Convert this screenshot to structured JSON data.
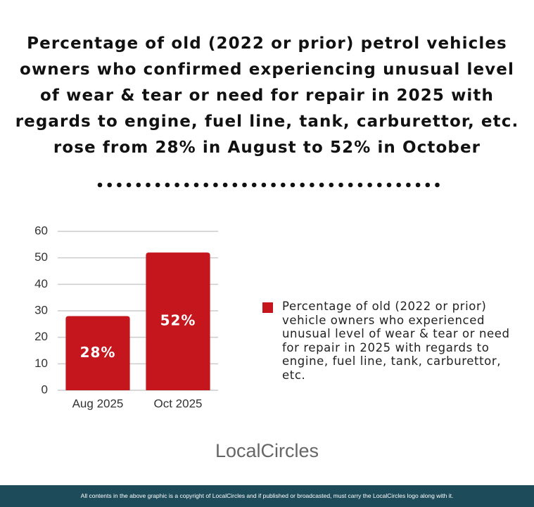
{
  "chart_data": {
    "type": "bar",
    "title": "Percentage of old (2022 or prior) petrol vehicles owners who confirmed experiencing unusual level of wear & tear or need for repair in 2025 with regards to engine, fuel line, tank, carburettor, etc. rose from 28% in August to 52% in October",
    "categories": [
      "Aug 2025",
      "Oct 2025"
    ],
    "series": [
      {
        "name": "Percentage of old (2022 or prior) vehicle owners who experienced unusual level of wear & tear or need for repair in 2025 with regards to engine, fuel line, tank, carburettor, etc.",
        "color": "#c4161c",
        "values": [
          28,
          52
        ],
        "value_labels": [
          "28%",
          "52%"
        ]
      }
    ],
    "ylim": [
      0,
      60
    ],
    "yticks": [
      0,
      10,
      20,
      30,
      40,
      50,
      60
    ],
    "grid": true
  },
  "logo": "LocalCircles",
  "footer": "All contents in the above graphic is a copyright of LocalCircles and if published or broadcasted, must carry the LocalCircles logo along with it."
}
